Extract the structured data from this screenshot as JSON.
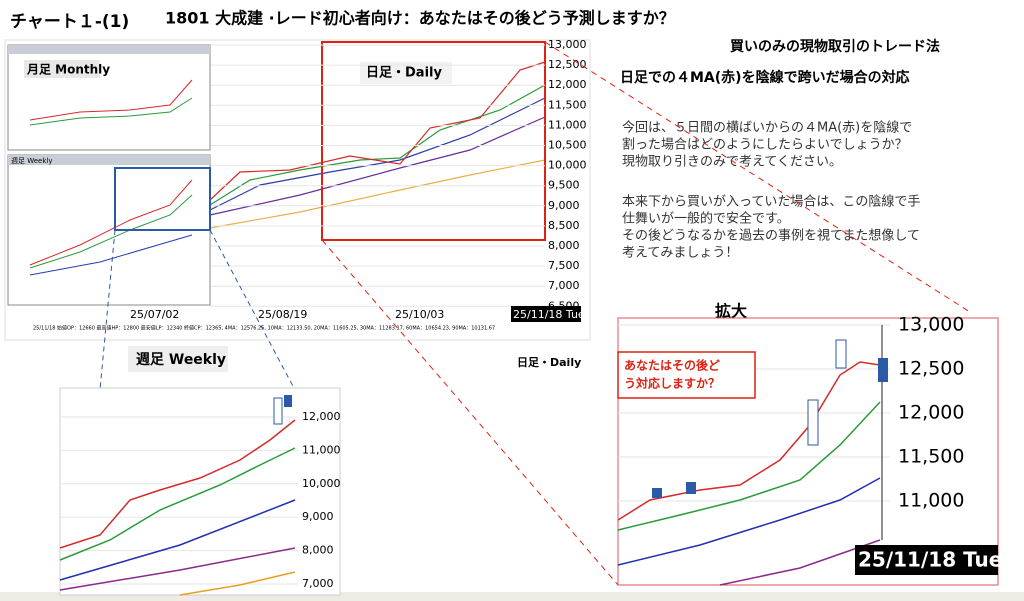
{
  "header": {
    "chart_no": "チャート１-(1)",
    "title": "1801 大成建 ·レード初心者向け：あなたはその後どう予測しますか？"
  },
  "main_chart": {
    "box_label": "日足・Daily",
    "monthly_label": "月足 Monthly",
    "weekly_label": "週足 Weekly",
    "yticks": [
      "13,000",
      "12,500",
      "12,000",
      "11,500",
      "11,000",
      "10,500",
      "10,000",
      "9,500",
      "9,000",
      "8,500",
      "8,000",
      "7,500",
      "7,000",
      "6,500"
    ],
    "xticks": [
      "25/07/02",
      "25/08/19",
      "25/10/03"
    ],
    "last_date": "25/11/18 Tue",
    "info": "25/11/18 始値OP：12660 最高値HP：12800 最安値LP：12340 終値CP：12365, 4MA：12576.25, 10MA：12133.50, 20MA：11605.25, 30MA：11283.17, 60MA：10654.23, 90MA：10131.67"
  },
  "weekly_zoom": {
    "label": "週足 Weekly",
    "yticks": [
      "12,000",
      "11,000",
      "10,000",
      "9,000",
      "8,000",
      "7,000"
    ]
  },
  "daily_label": "日足・Daily",
  "side": {
    "heading1": "買いのみの現物取引のトレード法",
    "heading2": "日足での４MA(赤)を陰線で跨いだ場合の対応",
    "paragraph1": [
      "今回は、５日間の横ばいからの４MA(赤)を陰線で",
      "割った場合はどのようにしたらよいでしょうか？",
      "現物取り引きのみで考えてください。"
    ],
    "paragraph2": [
      "本来下から買いが入っていた場合は、この陰線で手",
      "仕舞いが一般的で安全です。",
      "その後どうなるかを過去の事例を視てまた想像して",
      "考えてみましょう！"
    ]
  },
  "zoom": {
    "title": "拡大",
    "yticks": [
      "13,000",
      "12,500",
      "12,000",
      "11,500",
      "11,000"
    ],
    "callout": [
      "あなたはその後ど",
      "う対応しますか？"
    ],
    "last_date": "25/11/18 Tue"
  }
}
